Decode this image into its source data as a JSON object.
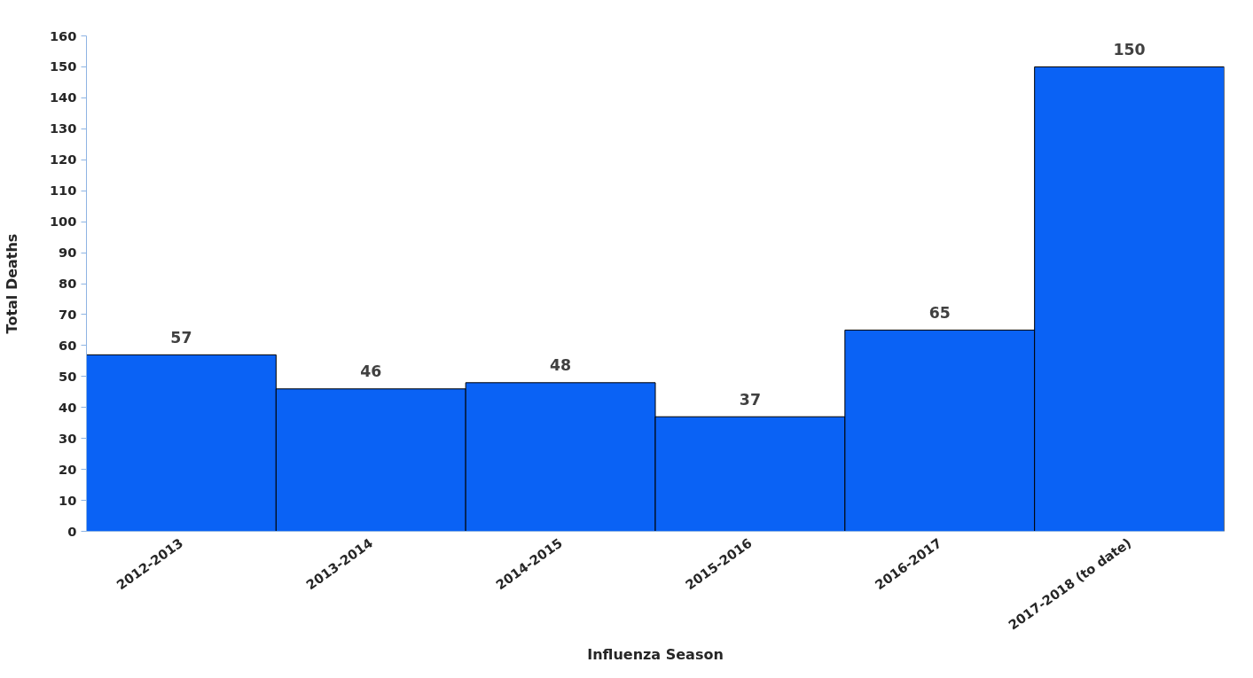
{
  "chart_data": {
    "type": "bar",
    "xlabel": "Influenza Season",
    "ylabel": "Total Deaths",
    "categories": [
      "2012-2013",
      "2013-2014",
      "2014-2015",
      "2015-2016",
      "2016-2017",
      "2017-2018 (to date)"
    ],
    "values": [
      57,
      46,
      48,
      37,
      65,
      150
    ],
    "color": "#0a62f5",
    "ylim": [
      0,
      160
    ],
    "yticks": [
      0,
      10,
      20,
      30,
      40,
      50,
      60,
      70,
      80,
      90,
      100,
      110,
      120,
      130,
      140,
      150,
      160
    ],
    "grid": false,
    "data_labels": true
  }
}
